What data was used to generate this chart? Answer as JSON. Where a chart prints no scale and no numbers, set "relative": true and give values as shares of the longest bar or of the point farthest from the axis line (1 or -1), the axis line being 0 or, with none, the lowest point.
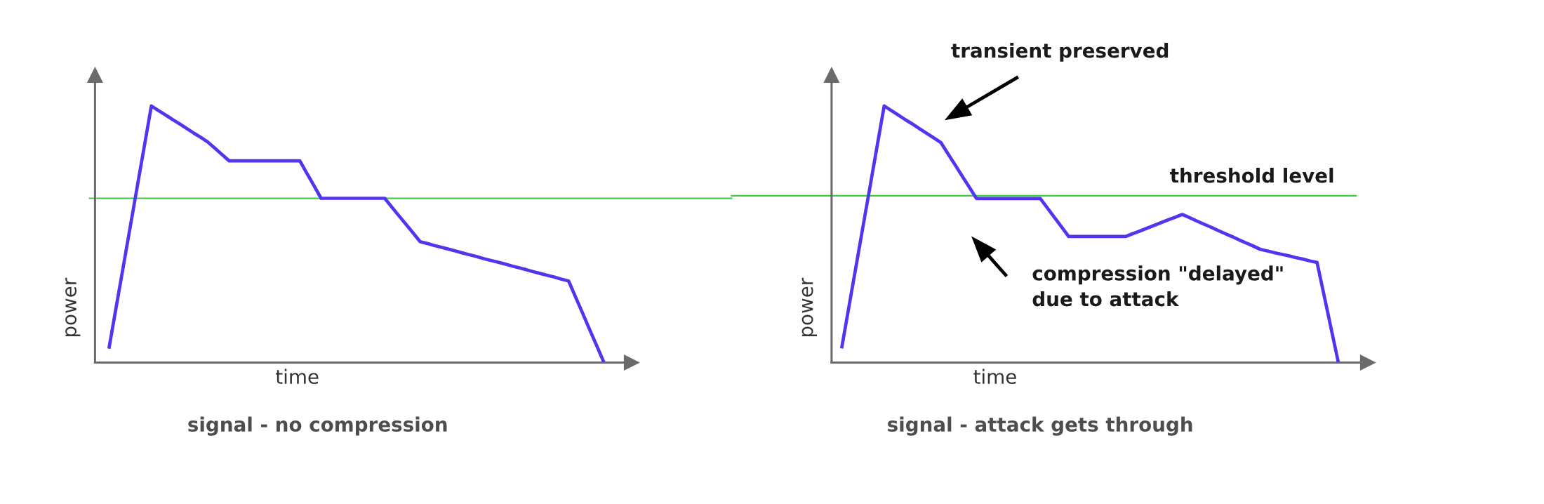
{
  "chart_data": [
    {
      "type": "line",
      "title": "signal - no compression",
      "xlabel": "time",
      "ylabel": "power",
      "relative": true,
      "tick_labels": false,
      "categories": [
        null,
        null,
        null,
        null,
        null,
        null,
        null,
        null,
        null,
        null,
        null,
        null,
        null,
        null,
        null,
        null,
        null,
        null,
        null,
        null,
        null,
        null,
        null,
        null,
        null,
        null,
        null,
        null,
        null,
        null,
        null,
        null,
        null,
        null,
        null,
        null,
        null,
        null,
        null,
        null,
        null,
        null,
        null,
        null,
        null,
        null,
        null,
        null,
        null,
        null,
        null,
        null,
        null,
        null,
        null,
        null,
        null,
        null,
        null,
        null,
        null,
        null,
        null,
        null,
        null,
        null,
        null,
        null,
        null,
        null,
        null
      ],
      "series": [
        {
          "color": "#5036ee",
          "values": [
            0.054,
            0.212,
            0.369,
            0.527,
            0.685,
            0.842,
            1,
            0.982,
            0.965,
            0.947,
            0.93,
            0.912,
            0.894,
            0.877,
            0.859,
            0.835,
            0.81,
            0.786,
            0.786,
            0.786,
            0.786,
            0.786,
            0.786,
            0.786,
            0.786,
            0.786,
            0.786,
            0.786,
            0.737,
            0.689,
            0.64,
            0.64,
            0.64,
            0.64,
            0.64,
            0.64,
            0.64,
            0.64,
            0.64,
            0.64,
            0.606,
            0.572,
            0.539,
            0.505,
            0.471,
            0.464,
            0.456,
            0.449,
            0.442,
            0.435,
            0.427,
            0.42,
            0.413,
            0.405,
            0.398,
            0.391,
            0.384,
            0.376,
            0.369,
            0.362,
            0.354,
            0.347,
            0.34,
            0.333,
            0.325,
            0.318,
            0.254,
            0.191,
            0.127,
            0.064,
            0
          ]
        }
      ],
      "ref_lines": [
        {
          "axis": "y",
          "value": 0.64,
          "color": "#3cc83c"
        }
      ]
    },
    {
      "type": "line",
      "title": "signal - attack gets through",
      "xlabel": "time",
      "ylabel": "power",
      "relative": true,
      "tick_labels": false,
      "categories": [
        null,
        null,
        null,
        null,
        null,
        null,
        null,
        null,
        null,
        null,
        null,
        null,
        null,
        null,
        null,
        null,
        null,
        null,
        null,
        null,
        null,
        null,
        null,
        null,
        null,
        null,
        null,
        null,
        null,
        null,
        null,
        null,
        null,
        null,
        null,
        null,
        null,
        null,
        null,
        null,
        null,
        null,
        null,
        null,
        null,
        null,
        null,
        null,
        null,
        null,
        null,
        null,
        null,
        null,
        null,
        null,
        null,
        null,
        null,
        null,
        null,
        null,
        null,
        null,
        null,
        null,
        null,
        null,
        null,
        null,
        null
      ],
      "series": [
        {
          "color": "#5036ee",
          "values": [
            0.055,
            0.213,
            0.37,
            0.528,
            0.685,
            0.843,
            1,
            0.982,
            0.964,
            0.946,
            0.929,
            0.911,
            0.893,
            0.875,
            0.857,
            0.813,
            0.77,
            0.726,
            0.683,
            0.639,
            0.639,
            0.639,
            0.639,
            0.639,
            0.639,
            0.639,
            0.639,
            0.639,
            0.639,
            0.602,
            0.565,
            0.528,
            0.491,
            0.491,
            0.491,
            0.491,
            0.491,
            0.491,
            0.491,
            0.491,
            0.491,
            0.502,
            0.512,
            0.523,
            0.534,
            0.545,
            0.556,
            0.566,
            0.577,
            0.565,
            0.552,
            0.54,
            0.528,
            0.515,
            0.503,
            0.491,
            0.478,
            0.466,
            0.454,
            0.441,
            0.435,
            0.428,
            0.422,
            0.416,
            0.409,
            0.403,
            0.396,
            0.39,
            0.26,
            0.13,
            0
          ]
        }
      ],
      "ref_lines": [
        {
          "axis": "y",
          "value": 0.65,
          "label": "threshold level",
          "color": "#3cc83c"
        }
      ],
      "annotations": [
        "transient preserved",
        "compression \"delayed\"\ndue to attack"
      ]
    }
  ]
}
